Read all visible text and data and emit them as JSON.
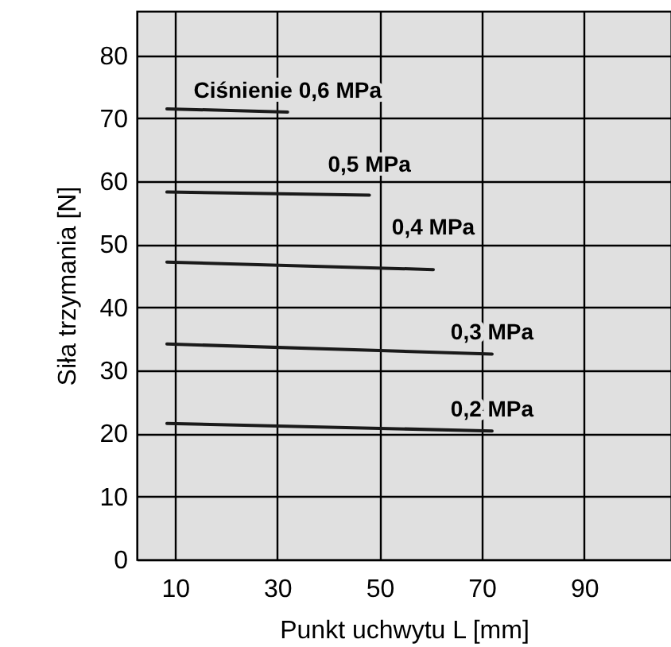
{
  "chart_data": {
    "type": "line",
    "xlabel": "Punkt uchwytu L [mm]",
    "ylabel": "Siła trzymania [N]",
    "xlim": [
      2.5,
      107
    ],
    "ylim": [
      0,
      87
    ],
    "xticks": [
      10,
      30,
      50,
      70,
      90
    ],
    "yticks": [
      0,
      10,
      20,
      30,
      40,
      50,
      60,
      70,
      80
    ],
    "grid": true,
    "series": [
      {
        "name": "Ciśnienie 0,6 MPa",
        "color": "#1a1a1a",
        "x": [
          8.4,
          32
        ],
        "values": [
          71.5,
          71
        ]
      },
      {
        "name": "0,5 MPa",
        "color": "#1a1a1a",
        "x": [
          8.4,
          48
        ],
        "values": [
          58.3,
          57.8
        ]
      },
      {
        "name": "0,4 MPa",
        "color": "#1a1a1a",
        "x": [
          8.4,
          60.5
        ],
        "values": [
          47.2,
          46
        ]
      },
      {
        "name": "0,3 MPa",
        "color": "#1a1a1a",
        "x": [
          8.4,
          72
        ],
        "values": [
          34.2,
          32.6
        ]
      },
      {
        "name": "0,2 MPa",
        "color": "#1a1a1a",
        "x": [
          8.4,
          72
        ],
        "values": [
          21.6,
          20.4
        ]
      }
    ]
  }
}
